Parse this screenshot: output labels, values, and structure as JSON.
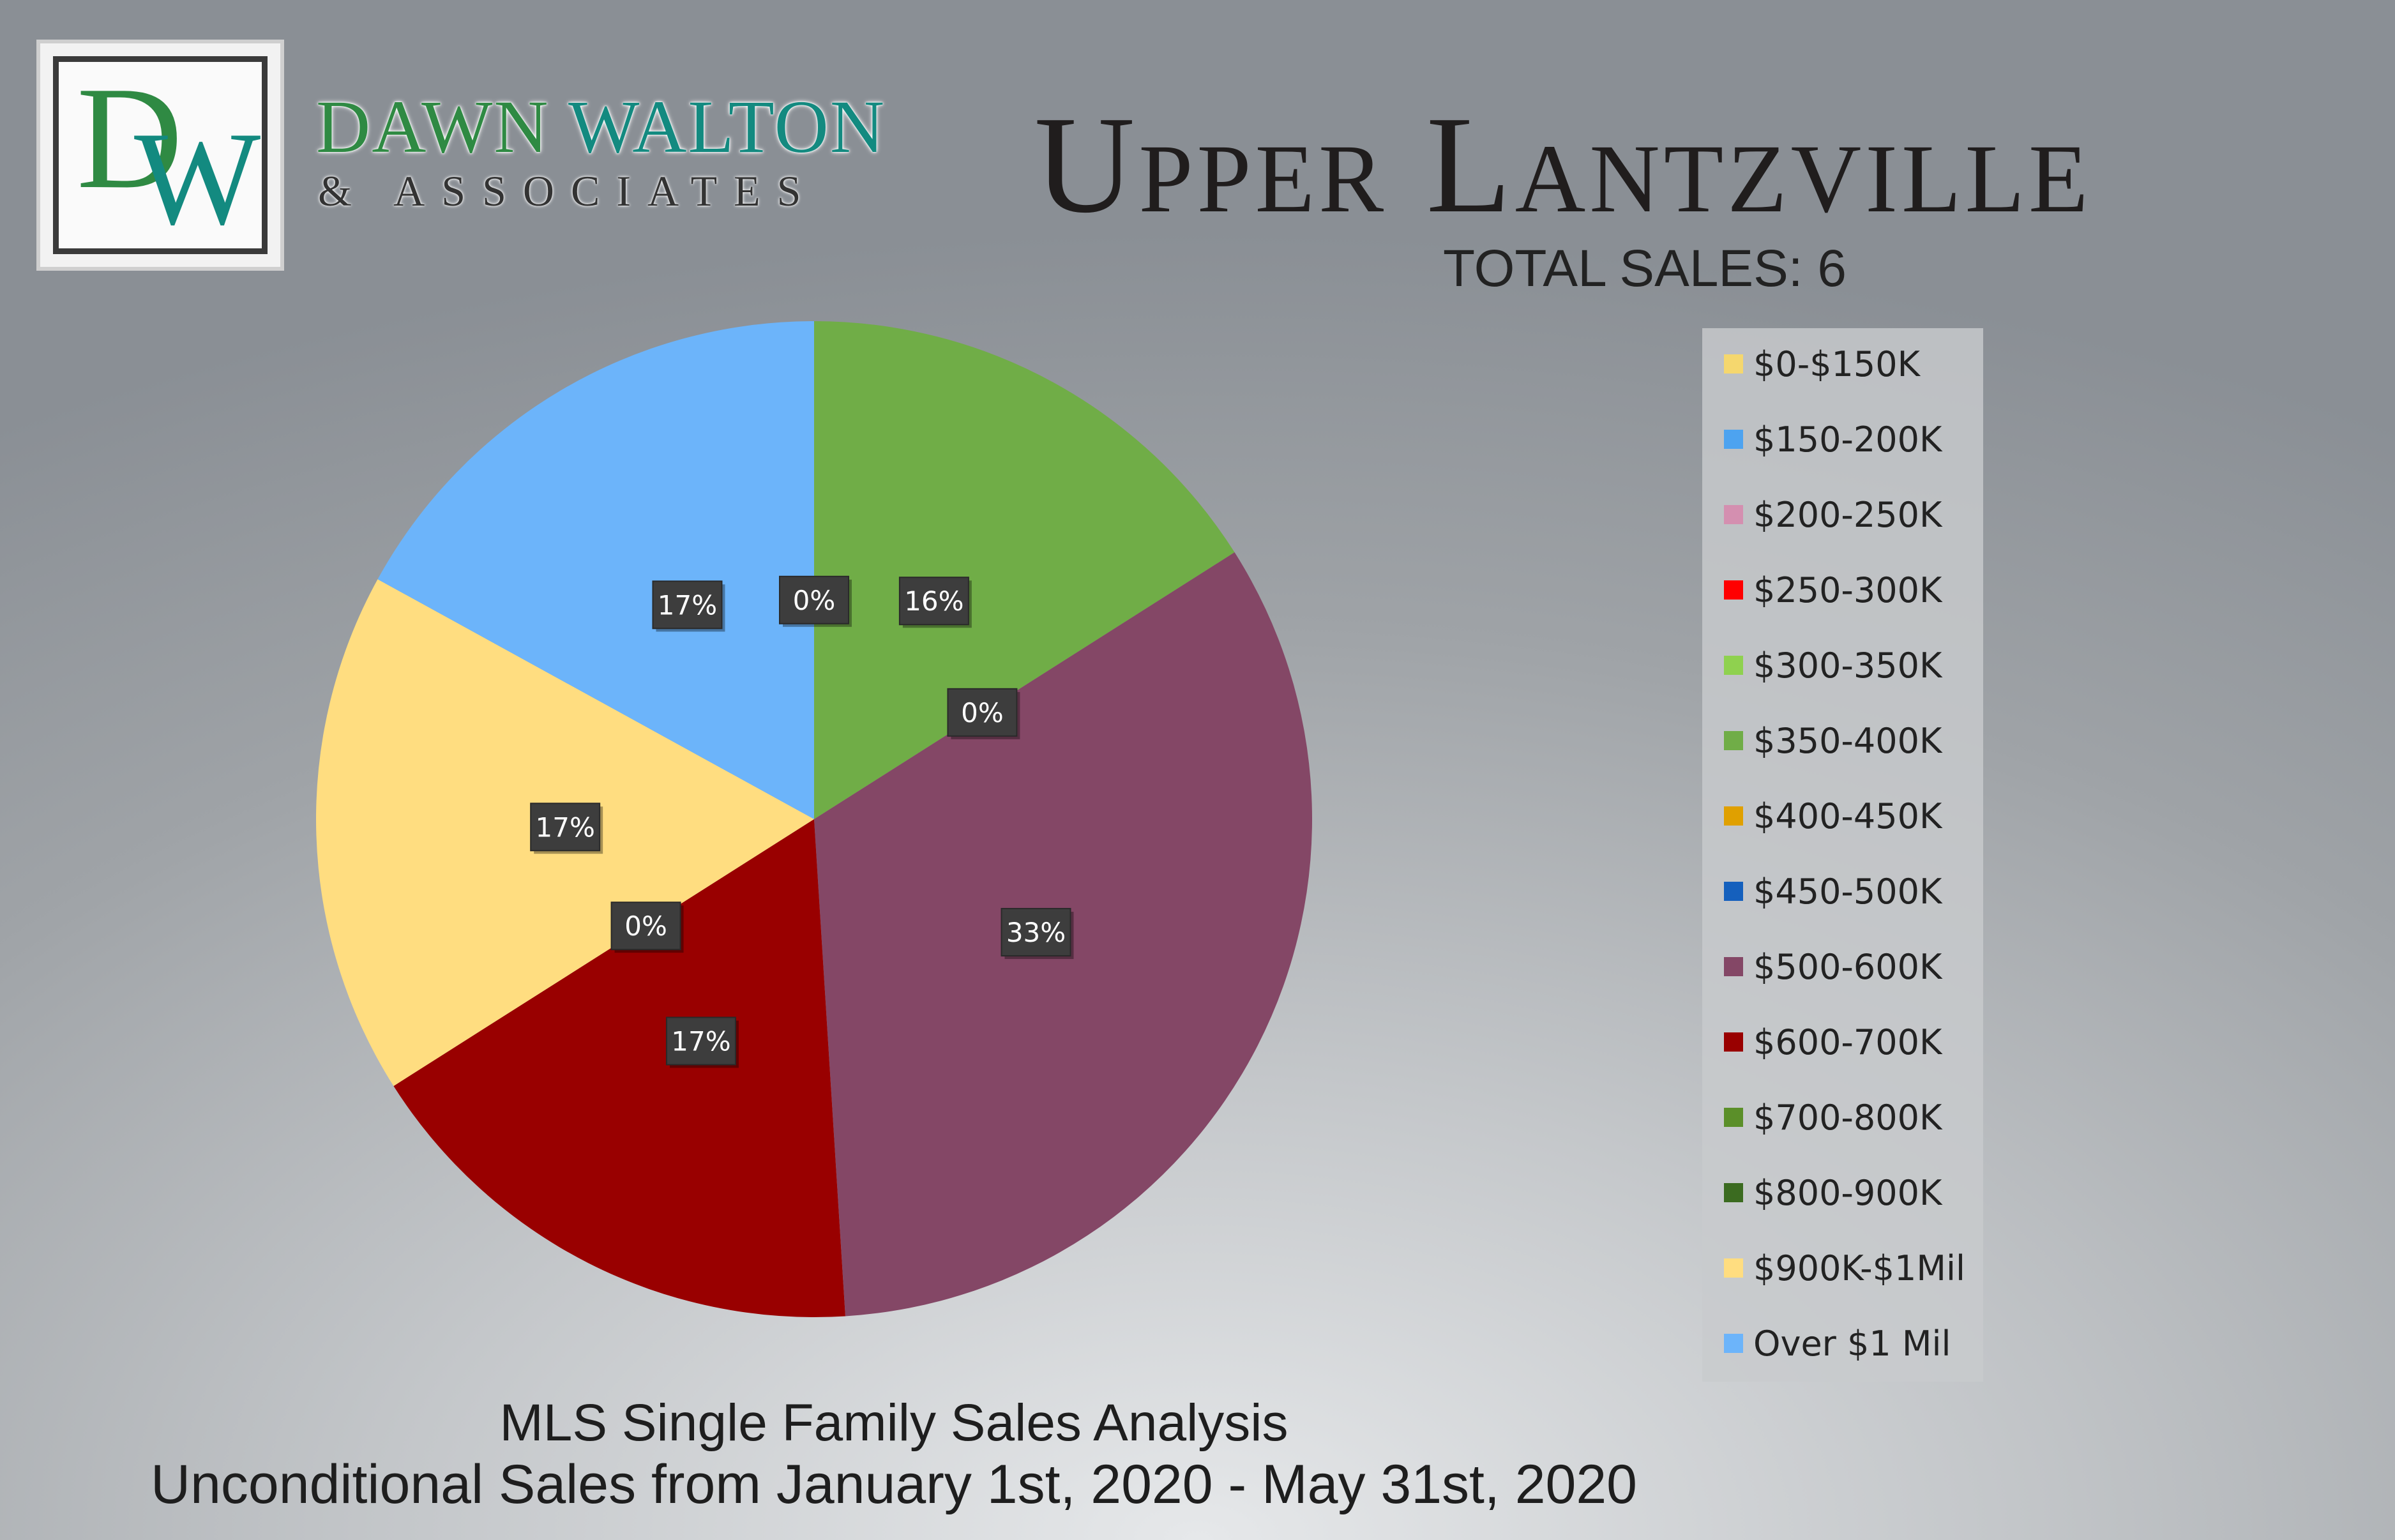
{
  "brand": {
    "logo_letters": "DW",
    "name_first": "DAWN",
    "name_last": "WALTON",
    "subtitle": "& ASSOCIATES",
    "colors": {
      "green": "#2f8a43",
      "teal": "#138a80"
    }
  },
  "header": {
    "title": "Upper Lantzville",
    "total_sales": "TOTAL SALES: 6"
  },
  "footer": {
    "line1": "MLS Single Family Sales Analysis",
    "line2": "Unconditional Sales from January 1st, 2020 - May 31st, 2020"
  },
  "chart_data": {
    "type": "pie",
    "title": "Upper Lantzville",
    "subtitle": "TOTAL SALES: 6",
    "legend_placement": "right",
    "slices": [
      {
        "name": "$0-$150K",
        "value": 0,
        "label": "",
        "color": "#f5d76e"
      },
      {
        "name": "$150-200K",
        "value": 0,
        "label": "",
        "color": "#4da3f0"
      },
      {
        "name": "$200-250K",
        "value": 0,
        "label": "",
        "color": "#d48fb0"
      },
      {
        "name": "$250-300K",
        "value": 0,
        "label": "",
        "color": "#ff0000"
      },
      {
        "name": "$300-350K",
        "value": 0,
        "label": "",
        "color": "#8fd14f"
      },
      {
        "name": "$350-400K",
        "value": 16,
        "label": "16%",
        "color": "#70ad47"
      },
      {
        "name": "$400-450K",
        "value": 0,
        "label": "0%",
        "color": "#e0a000"
      },
      {
        "name": "$450-500K",
        "value": 0,
        "label": "",
        "color": "#1560bd"
      },
      {
        "name": "$500-600K",
        "value": 33,
        "label": "33%",
        "color": "#844766"
      },
      {
        "name": "$600-700K",
        "value": 17,
        "label": "17%",
        "color": "#990000"
      },
      {
        "name": "$700-800K",
        "value": 0,
        "label": "0%",
        "color": "#5b8f29"
      },
      {
        "name": "$800-900K",
        "value": 0,
        "label": "",
        "color": "#3b6b20"
      },
      {
        "name": "$900K-$1Mil",
        "value": 17,
        "label": "17%",
        "color": "#ffdd80"
      },
      {
        "name": "Over $1 Mil",
        "value": 17,
        "label": "17%",
        "color": "#6cb4fa"
      }
    ],
    "extra_labels": [
      "0%"
    ]
  }
}
